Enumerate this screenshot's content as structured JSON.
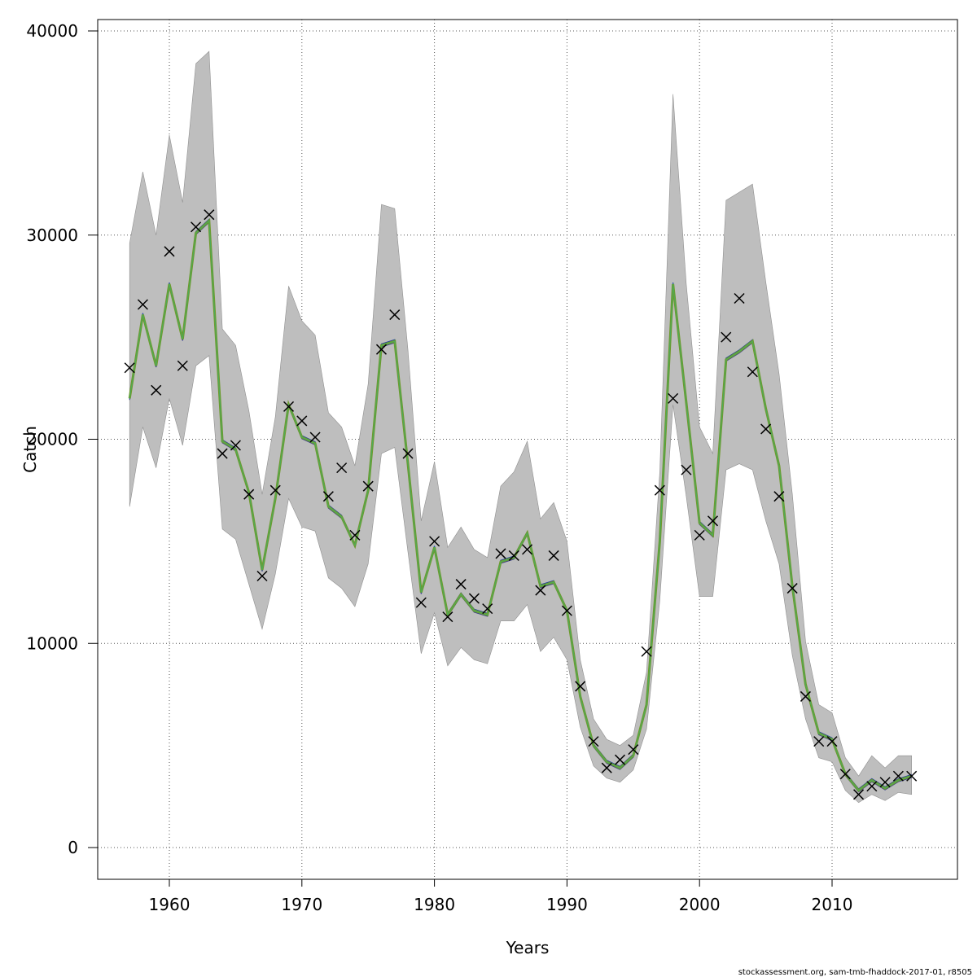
{
  "chart_data": {
    "type": "line",
    "xlabel": "Years",
    "ylabel": "Catch",
    "xlim": [
      1954.6,
      1919.4
    ],
    "ylim": [
      -1500,
      40600
    ],
    "xticks": [
      1960,
      1970,
      1980,
      1990,
      2000,
      2010
    ],
    "yticks": [
      0,
      10000,
      20000,
      30000,
      40000
    ],
    "grid": true,
    "footer": "stockassessment.org, sam-tmb-fhaddock-2017-01, r8505",
    "colors": {
      "band": "#bebebe",
      "band_edge": "#909090",
      "main_line": "#6f9a2c",
      "main_line_inner": "#3cb371",
      "retro_1": "#1f3fa0",
      "retro_2": "#2f7fd0",
      "retro_3": "#18b0b8",
      "retro_4": "#3a3f8f",
      "marker": "#000000"
    },
    "years": [
      1957,
      1958,
      1959,
      1960,
      1961,
      1962,
      1963,
      1964,
      1965,
      1966,
      1967,
      1968,
      1969,
      1970,
      1971,
      1972,
      1973,
      1974,
      1975,
      1976,
      1977,
      1978,
      1979,
      1980,
      1981,
      1982,
      1983,
      1984,
      1985,
      1986,
      1987,
      1988,
      1989,
      1990,
      1991,
      1992,
      1993,
      1994,
      1995,
      1996,
      1997,
      1998,
      1999,
      2000,
      2001,
      2002,
      2003,
      2004,
      2005,
      2006,
      2007,
      2008,
      2009,
      2010,
      2011,
      2012,
      2013,
      2014,
      2015,
      2016
    ],
    "observed": [
      23500,
      26600,
      22400,
      29200,
      23600,
      30400,
      31000,
      19300,
      19700,
      17300,
      13300,
      17500,
      21600,
      20900,
      20100,
      17200,
      18600,
      15300,
      17700,
      24400,
      26100,
      19300,
      12000,
      15000,
      11300,
      12900,
      12200,
      11700,
      14400,
      14300,
      14600,
      12600,
      14300,
      11600,
      7900,
      5200,
      3900,
      4300,
      4800,
      9600,
      17500,
      22000,
      18500,
      15300,
      16000,
      25000,
      26900,
      23300,
      20500,
      17200,
      12700,
      7400,
      5200,
      5200,
      3600,
      2600,
      3000,
      3200,
      3500,
      3500
    ],
    "estimate": [
      22000,
      26100,
      23600,
      27600,
      24900,
      30100,
      30700,
      19900,
      19500,
      17400,
      13600,
      17100,
      21700,
      20100,
      19800,
      16700,
      16200,
      14800,
      17500,
      24600,
      24800,
      18800,
      12500,
      14700,
      11400,
      12400,
      11600,
      11400,
      14000,
      14200,
      15400,
      12800,
      13000,
      11600,
      7400,
      5000,
      4200,
      3900,
      4500,
      7000,
      15000,
      27600,
      21800,
      15900,
      15300,
      23900,
      24300,
      24800,
      21500,
      18700,
      12800,
      8000,
      5600,
      5300,
      3600,
      2800,
      3300,
      2900,
      3300,
      3500
    ],
    "lower": [
      16700,
      20600,
      18600,
      22000,
      19700,
      23600,
      24100,
      15600,
      15100,
      12900,
      10700,
      13400,
      17100,
      15700,
      15500,
      13200,
      12700,
      11800,
      13900,
      19300,
      19600,
      14500,
      9500,
      11500,
      8900,
      9800,
      9200,
      9000,
      11100,
      11100,
      11900,
      9600,
      10300,
      9200,
      5900,
      4000,
      3400,
      3200,
      3800,
      5800,
      12100,
      21700,
      17200,
      12300,
      12300,
      18500,
      18800,
      18500,
      16000,
      13900,
      9400,
      6300,
      4400,
      4200,
      2800,
      2200,
      2600,
      2300,
      2700,
      2600
    ],
    "upper": [
      29600,
      33100,
      30000,
      34900,
      31600,
      38400,
      39000,
      25400,
      24600,
      21400,
      17300,
      21100,
      27500,
      25800,
      25100,
      21300,
      20600,
      18700,
      22700,
      31500,
      31300,
      24400,
      16000,
      18900,
      14700,
      15700,
      14600,
      14200,
      17700,
      18400,
      19900,
      16100,
      16900,
      15000,
      9200,
      6300,
      5300,
      5000,
      5500,
      8600,
      18400,
      36900,
      27600,
      20600,
      19300,
      31700,
      32100,
      32500,
      27700,
      23200,
      17300,
      10100,
      7000,
      6600,
      4400,
      3500,
      4500,
      3900,
      4500,
      4500
    ]
  }
}
